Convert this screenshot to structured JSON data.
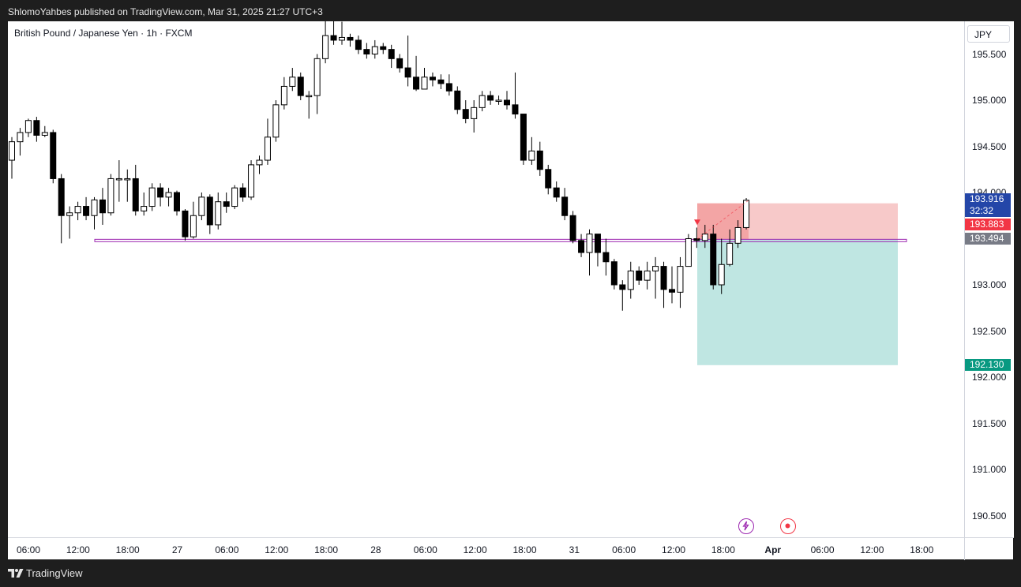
{
  "header": {
    "published_text": "ShlomoYahbes published on TradingView.com, Mar 31, 2025 21:27 UTC+3"
  },
  "chart": {
    "symbol_title": "British Pound / Japanese Yen · 1h · FXCM",
    "currency": "JPY",
    "price_ticks": [
      "195.500",
      "195.000",
      "194.500",
      "194.000",
      "193.000",
      "192.500",
      "192.000",
      "191.500",
      "191.000",
      "190.500"
    ],
    "time_ticks": [
      {
        "label": "06:00",
        "bold": false
      },
      {
        "label": "12:00",
        "bold": false
      },
      {
        "label": "18:00",
        "bold": false
      },
      {
        "label": "27",
        "bold": false
      },
      {
        "label": "06:00",
        "bold": false
      },
      {
        "label": "12:00",
        "bold": false
      },
      {
        "label": "18:00",
        "bold": false
      },
      {
        "label": "28",
        "bold": false
      },
      {
        "label": "06:00",
        "bold": false
      },
      {
        "label": "12:00",
        "bold": false
      },
      {
        "label": "18:00",
        "bold": false
      },
      {
        "label": "31",
        "bold": false
      },
      {
        "label": "06:00",
        "bold": false
      },
      {
        "label": "12:00",
        "bold": false
      },
      {
        "label": "18:00",
        "bold": false
      },
      {
        "label": "Apr",
        "bold": true
      },
      {
        "label": "06:00",
        "bold": false
      },
      {
        "label": "12:00",
        "bold": false
      },
      {
        "label": "18:00",
        "bold": false
      }
    ],
    "last_price": {
      "value": "193.916",
      "countdown": "32:32",
      "color": "#2446a8"
    },
    "stop_label": {
      "value": "193.883",
      "color": "#f23645"
    },
    "entry_label": {
      "value": "193.494",
      "color": "#787b86"
    },
    "target_label": {
      "value": "192.130",
      "color": "#089981"
    },
    "horizontal_level": {
      "price": 193.48,
      "color": "#9c27b0"
    },
    "position": {
      "type": "short",
      "entry": 193.494,
      "stop": 193.883,
      "target": 192.13,
      "risk_color": "#f7c9c9",
      "reward_color": "#bfe6e2"
    },
    "candle_colors": {
      "up": "#ffffff",
      "down": "#000000",
      "wick": "#000000"
    }
  },
  "chart_data": {
    "type": "candlestick",
    "title": "British Pound / Japanese Yen · 1h · FXCM",
    "ylabel": "JPY",
    "ylim": [
      190.25,
      196.0
    ],
    "candles": [
      [
        194.35,
        194.55,
        194.15,
        194.6
      ],
      [
        194.55,
        194.65,
        194.4,
        194.7
      ],
      [
        194.65,
        194.78,
        194.6,
        194.8
      ],
      [
        194.78,
        194.62,
        194.55,
        194.82
      ],
      [
        194.62,
        194.65,
        194.6,
        194.72
      ],
      [
        194.65,
        194.15,
        194.1,
        194.68
      ],
      [
        194.15,
        193.75,
        193.45,
        194.2
      ],
      [
        193.75,
        193.78,
        193.5,
        193.85
      ],
      [
        193.78,
        193.85,
        193.7,
        193.9
      ],
      [
        193.85,
        193.75,
        193.7,
        193.95
      ],
      [
        193.75,
        193.92,
        193.6,
        193.95
      ],
      [
        193.92,
        193.78,
        193.65,
        194.05
      ],
      [
        193.78,
        194.15,
        193.75,
        194.2
      ],
      [
        194.15,
        194.15,
        193.9,
        194.35
      ],
      [
        194.15,
        194.15,
        193.9,
        194.25
      ],
      [
        194.15,
        193.8,
        193.75,
        194.3
      ],
      [
        193.8,
        193.85,
        193.75,
        194.0
      ],
      [
        193.85,
        194.05,
        193.8,
        194.1
      ],
      [
        194.05,
        193.95,
        193.85,
        194.1
      ],
      [
        193.95,
        194.0,
        193.85,
        194.05
      ],
      [
        194.0,
        193.8,
        193.75,
        194.02
      ],
      [
        193.8,
        193.52,
        193.48,
        193.82
      ],
      [
        193.52,
        193.75,
        193.5,
        193.9
      ],
      [
        193.75,
        193.95,
        193.7,
        194.0
      ],
      [
        193.95,
        193.65,
        193.55,
        193.98
      ],
      [
        193.65,
        193.9,
        193.6,
        194.0
      ],
      [
        193.9,
        193.85,
        193.78,
        194.0
      ],
      [
        193.85,
        194.05,
        193.82,
        194.08
      ],
      [
        194.05,
        193.95,
        193.9,
        194.1
      ],
      [
        193.95,
        194.3,
        193.92,
        194.35
      ],
      [
        194.3,
        194.35,
        194.2,
        194.4
      ],
      [
        194.35,
        194.6,
        194.3,
        194.8
      ],
      [
        194.6,
        194.95,
        194.55,
        195.0
      ],
      [
        194.95,
        195.15,
        194.9,
        195.25
      ],
      [
        195.15,
        195.25,
        195.1,
        195.35
      ],
      [
        195.25,
        195.05,
        195.0,
        195.3
      ],
      [
        195.05,
        195.05,
        194.8,
        195.1
      ],
      [
        195.05,
        195.45,
        194.85,
        195.5
      ],
      [
        195.45,
        195.7,
        195.4,
        195.95
      ],
      [
        195.7,
        195.65,
        195.6,
        195.95
      ],
      [
        195.65,
        195.68,
        195.6,
        195.85
      ],
      [
        195.68,
        195.65,
        195.58,
        195.72
      ],
      [
        195.65,
        195.55,
        195.5,
        195.7
      ],
      [
        195.55,
        195.5,
        195.45,
        195.62
      ],
      [
        195.5,
        195.58,
        195.45,
        195.65
      ],
      [
        195.58,
        195.55,
        195.5,
        195.62
      ],
      [
        195.55,
        195.45,
        195.35,
        195.6
      ],
      [
        195.45,
        195.35,
        195.3,
        195.5
      ],
      [
        195.35,
        195.25,
        195.15,
        195.7
      ],
      [
        195.25,
        195.12,
        195.1,
        195.48
      ],
      [
        195.12,
        195.25,
        195.12,
        195.35
      ],
      [
        195.25,
        195.22,
        195.15,
        195.3
      ],
      [
        195.22,
        195.18,
        195.12,
        195.28
      ],
      [
        195.18,
        195.1,
        195.05,
        195.28
      ],
      [
        195.1,
        194.9,
        194.85,
        195.15
      ],
      [
        194.9,
        194.8,
        194.75,
        195.0
      ],
      [
        194.8,
        194.92,
        194.65,
        195.0
      ],
      [
        194.92,
        195.05,
        194.88,
        195.1
      ],
      [
        195.05,
        195.0,
        194.95,
        195.1
      ],
      [
        195.0,
        195.0,
        194.95,
        195.05
      ],
      [
        195.0,
        194.95,
        194.9,
        195.1
      ],
      [
        194.95,
        194.85,
        194.8,
        195.3
      ],
      [
        194.85,
        194.35,
        194.3,
        194.85
      ],
      [
        194.35,
        194.45,
        194.3,
        194.6
      ],
      [
        194.45,
        194.25,
        194.18,
        194.55
      ],
      [
        194.25,
        194.05,
        193.98,
        194.3
      ],
      [
        194.05,
        193.95,
        193.9,
        194.12
      ],
      [
        193.95,
        193.75,
        193.7,
        194.05
      ],
      [
        193.75,
        193.48,
        193.45,
        193.8
      ],
      [
        193.48,
        193.35,
        193.3,
        193.55
      ],
      [
        193.35,
        193.55,
        193.1,
        193.6
      ],
      [
        193.55,
        193.35,
        193.2,
        193.55
      ],
      [
        193.35,
        193.25,
        193.1,
        193.5
      ],
      [
        193.25,
        193.0,
        192.95,
        193.28
      ],
      [
        193.0,
        192.95,
        192.72,
        193.05
      ],
      [
        192.95,
        193.15,
        192.85,
        193.25
      ],
      [
        193.15,
        193.05,
        193.0,
        193.2
      ],
      [
        193.05,
        193.15,
        192.95,
        193.25
      ],
      [
        193.15,
        193.2,
        192.85,
        193.3
      ],
      [
        193.2,
        192.95,
        192.75,
        193.25
      ],
      [
        192.95,
        192.92,
        192.8,
        193.2
      ],
      [
        192.92,
        193.2,
        192.75,
        193.3
      ],
      [
        193.2,
        193.5,
        193.2,
        193.55
      ],
      [
        193.5,
        193.48,
        193.4,
        193.62
      ],
      [
        193.48,
        193.55,
        193.4,
        193.65
      ],
      [
        193.55,
        193.0,
        192.95,
        193.65
      ],
      [
        193.0,
        193.22,
        192.9,
        193.5
      ],
      [
        193.22,
        193.45,
        193.2,
        193.6
      ],
      [
        193.45,
        193.62,
        193.4,
        193.7
      ],
      [
        193.62,
        193.916,
        193.6,
        193.94
      ]
    ]
  }
}
